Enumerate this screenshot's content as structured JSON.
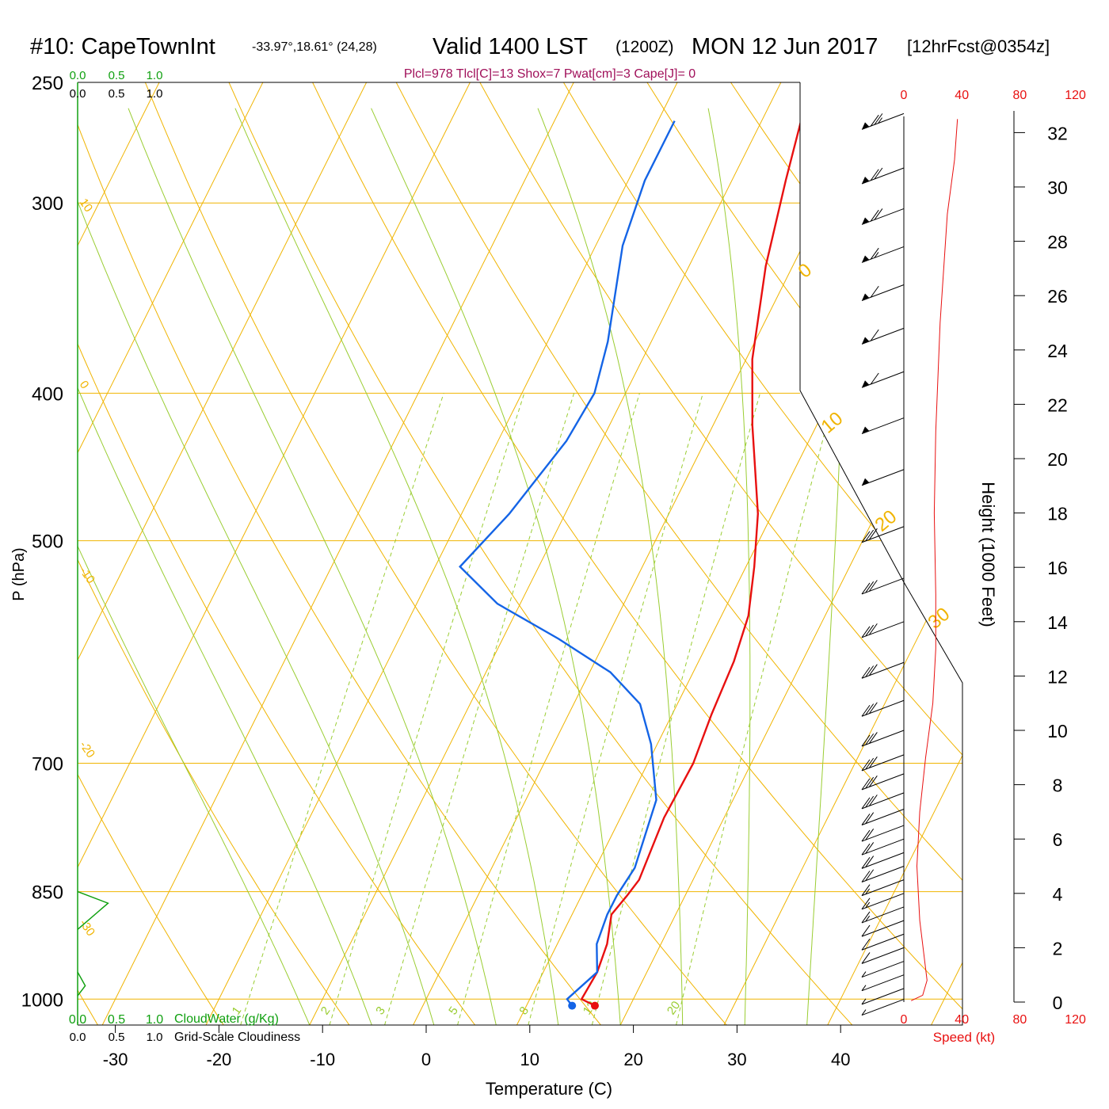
{
  "header": {
    "station": "#10: CapeTownInt",
    "coords": "-33.97°,18.61° (24,28)",
    "valid": "Valid 1400 LST",
    "zulu": "(1200Z)",
    "date": "MON 12 Jun 2017",
    "forecast": "[12hrFcst@0354z]",
    "indices": "Plcl=978 Tlcl[C]=13 Shox=7 Pwat[cm]=3 Cape[J]= 0"
  },
  "colors": {
    "isotherm": "#f0b400",
    "mixing": "#9acd32",
    "temperature": "#e81010",
    "dewpoint": "#1464e6",
    "cloud": "#10a010",
    "indices": "#a0105a",
    "speed": "#e81010"
  },
  "chart_data": {
    "type": "line",
    "subtype": "skew-t log-p sounding",
    "xlabel": "Temperature (C)",
    "ylabel": "P (hPa)",
    "y2label": "Height (1000 Feet)",
    "xlim": [
      -33,
      43
    ],
    "ylim_hpa": [
      250,
      1040
    ],
    "x_ticks": [
      -30,
      -20,
      -10,
      0,
      10,
      20,
      30,
      40
    ],
    "pressure_ticks": [
      250,
      300,
      400,
      500,
      700,
      850,
      1000
    ],
    "height_ticks": [
      0,
      2,
      4,
      6,
      8,
      10,
      12,
      14,
      16,
      18,
      20,
      22,
      24,
      26,
      28,
      30,
      32
    ],
    "isotherm_labels": [
      10,
      0,
      -10,
      -20,
      -30
    ],
    "isotherm_labels_right": [
      0,
      10,
      20,
      30
    ],
    "mixing_ratio_labels": [
      1,
      2,
      3,
      5,
      8,
      12,
      20
    ],
    "series": [
      {
        "name": "temperature",
        "points": [
          [
            16.6,
            1010
          ],
          [
            15.0,
            1000
          ],
          [
            15.2,
            960
          ],
          [
            14.8,
            920
          ],
          [
            13.8,
            880
          ],
          [
            14.4,
            855
          ],
          [
            14.8,
            835
          ],
          [
            14.2,
            760
          ],
          [
            14.4,
            700
          ],
          [
            13.8,
            650
          ],
          [
            13.4,
            600
          ],
          [
            12.6,
            560
          ],
          [
            10.8,
            520
          ],
          [
            8.6,
            480
          ],
          [
            3.8,
            420
          ],
          [
            0.6,
            380
          ],
          [
            -2.6,
            330
          ],
          [
            -4.8,
            290
          ],
          [
            -6.2,
            265
          ]
        ]
      },
      {
        "name": "dewpoint",
        "points": [
          [
            14.4,
            1010
          ],
          [
            13.6,
            1000
          ],
          [
            15.2,
            960
          ],
          [
            13.8,
            920
          ],
          [
            13.4,
            880
          ],
          [
            13.4,
            855
          ],
          [
            13.8,
            820
          ],
          [
            12.6,
            740
          ],
          [
            9.4,
            680
          ],
          [
            6.4,
            640
          ],
          [
            2.0,
            610
          ],
          [
            -4.6,
            580
          ],
          [
            -12.2,
            550
          ],
          [
            -17.6,
            520
          ],
          [
            -15.4,
            480
          ],
          [
            -13.4,
            430
          ],
          [
            -13.0,
            400
          ],
          [
            -14.2,
            370
          ],
          [
            -17.4,
            320
          ],
          [
            -18.4,
            290
          ],
          [
            -18.4,
            265
          ]
        ]
      }
    ],
    "speed_profile": {
      "label": "Speed (kt)",
      "ticks": [
        0,
        40,
        80,
        120
      ],
      "points": [
        [
          5,
          0.05
        ],
        [
          13,
          0.25
        ],
        [
          16,
          0.8
        ],
        [
          11,
          3
        ],
        [
          9,
          5
        ],
        [
          11,
          7
        ],
        [
          15,
          9
        ],
        [
          20,
          11
        ],
        [
          22,
          13
        ],
        [
          22,
          15
        ],
        [
          21,
          18
        ],
        [
          22,
          21
        ],
        [
          25,
          25
        ],
        [
          30,
          29
        ],
        [
          35,
          31
        ],
        [
          37,
          32.5
        ]
      ]
    },
    "cloud_water": {
      "label": "CloudWater (g/Kg)",
      "ticks": [
        "0.0",
        "0.5",
        "1.0"
      ]
    },
    "cloudiness": {
      "label": "Grid-Scale Cloudiness",
      "ticks": [
        "0.0",
        "0.5",
        "1.0"
      ],
      "layers": [
        [
          0,
          850
        ],
        [
          0.6,
          865
        ],
        [
          0,
          900
        ],
        [
          0,
          960
        ],
        [
          0.15,
          980
        ],
        [
          0,
          995
        ]
      ]
    },
    "wind_barbs": [
      {
        "h": 32.7,
        "barbs": 2.5,
        "flag": 1
      },
      {
        "h": 30.7,
        "barbs": 2,
        "flag": 1
      },
      {
        "h": 29.2,
        "barbs": 2,
        "flag": 1
      },
      {
        "h": 27.8,
        "barbs": 1.5,
        "flag": 1
      },
      {
        "h": 26.4,
        "barbs": 1,
        "flag": 1
      },
      {
        "h": 24.8,
        "barbs": 1,
        "flag": 1
      },
      {
        "h": 23.2,
        "barbs": 1,
        "flag": 1
      },
      {
        "h": 21.5,
        "barbs": 0,
        "flag": 1
      },
      {
        "h": 19.6,
        "barbs": 0,
        "flag": 1
      },
      {
        "h": 17.5,
        "barbs": 3,
        "flag": 0
      },
      {
        "h": 15.6,
        "barbs": 3,
        "flag": 0
      },
      {
        "h": 14,
        "barbs": 3,
        "flag": 0
      },
      {
        "h": 12.5,
        "barbs": 3,
        "flag": 0
      },
      {
        "h": 11.1,
        "barbs": 3,
        "flag": 0
      },
      {
        "h": 10,
        "barbs": 3,
        "flag": 0
      },
      {
        "h": 9.1,
        "barbs": 3,
        "flag": 0
      },
      {
        "h": 8.4,
        "barbs": 3,
        "flag": 0
      },
      {
        "h": 7.7,
        "barbs": 3,
        "flag": 0
      },
      {
        "h": 7.1,
        "barbs": 2,
        "flag": 0
      },
      {
        "h": 6.5,
        "barbs": 2,
        "flag": 0
      },
      {
        "h": 6,
        "barbs": 2,
        "flag": 0
      },
      {
        "h": 5.5,
        "barbs": 2,
        "flag": 0
      },
      {
        "h": 5,
        "barbs": 2,
        "flag": 0
      },
      {
        "h": 4.5,
        "barbs": 1.5,
        "flag": 0
      },
      {
        "h": 4,
        "barbs": 1.5,
        "flag": 0
      },
      {
        "h": 3.5,
        "barbs": 1.5,
        "flag": 0
      },
      {
        "h": 3,
        "barbs": 1,
        "flag": 0
      },
      {
        "h": 2.5,
        "barbs": 1,
        "flag": 0
      },
      {
        "h": 2,
        "barbs": 1,
        "flag": 0
      },
      {
        "h": 1.5,
        "barbs": 0.5,
        "flag": 0
      },
      {
        "h": 1,
        "barbs": 0.5,
        "flag": 0
      },
      {
        "h": 0.5,
        "barbs": 0.5,
        "flag": 0
      },
      {
        "h": 0.1,
        "barbs": 0.5,
        "flag": 0
      }
    ]
  }
}
